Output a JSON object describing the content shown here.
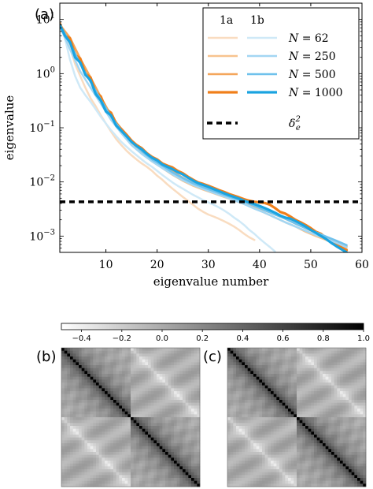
{
  "chart_data": [
    {
      "panel_label": "(a)",
      "type": "line",
      "xlabel": "eigenvalue number",
      "ylabel": "eigenvalue",
      "xlim": [
        1,
        60
      ],
      "ylim": [
        0.0005,
        20
      ],
      "yscale": "log",
      "grid": false,
      "legend_position": "top-right",
      "legend": {
        "column_headers": [
          "1a",
          "1b"
        ],
        "row_labels": [
          "N = 62",
          "N = 250",
          "N = 500",
          "N = 1000"
        ],
        "threshold_label": "δ_e²"
      },
      "x_ticks": [
        10,
        20,
        30,
        40,
        50,
        60
      ],
      "y_ticks": [
        {
          "value": 10,
          "base": "10",
          "exp": "1"
        },
        {
          "value": 1,
          "base": "10",
          "exp": "0"
        },
        {
          "value": 0.1,
          "base": "10",
          "exp": "−1"
        },
        {
          "value": 0.01,
          "base": "10",
          "exp": "−2"
        },
        {
          "value": 0.001,
          "base": "10",
          "exp": "−3"
        }
      ],
      "threshold": 0.0043,
      "series": [
        {
          "name": "1a, N = 62",
          "group": "1a",
          "N": 62,
          "color": "#f9dcc0",
          "width": 2.5,
          "x": [
            1,
            2,
            3,
            4,
            5,
            6,
            7,
            8,
            9,
            10,
            11,
            12,
            13,
            14,
            15,
            16,
            17,
            18,
            19,
            20,
            21,
            22,
            23,
            24,
            25,
            26,
            27,
            28,
            29,
            30,
            31,
            32,
            33,
            34,
            35,
            36,
            37,
            38,
            39
          ],
          "y": [
            8,
            5,
            3,
            1.5,
            0.9,
            0.55,
            0.35,
            0.25,
            0.17,
            0.12,
            0.085,
            0.062,
            0.048,
            0.038,
            0.031,
            0.026,
            0.022,
            0.019,
            0.016,
            0.013,
            0.011,
            0.009,
            0.0075,
            0.0063,
            0.0053,
            0.0045,
            0.0038,
            0.0032,
            0.0028,
            0.0025,
            0.0023,
            0.0021,
            0.0019,
            0.0017,
            0.0015,
            0.0013,
            0.0011,
            0.00095,
            0.00085
          ]
        },
        {
          "name": "1a, N = 250",
          "group": "1a",
          "N": 250,
          "color": "#f7c38f",
          "width": 2.5,
          "x": [
            1,
            3,
            5,
            7,
            9,
            11,
            13,
            15,
            17,
            19,
            21,
            23,
            25,
            27,
            29,
            31,
            33,
            35,
            37,
            39,
            41,
            43,
            45,
            47,
            49,
            51,
            53,
            55,
            57
          ],
          "y": [
            8,
            4.2,
            1.7,
            0.75,
            0.32,
            0.15,
            0.085,
            0.05,
            0.034,
            0.024,
            0.018,
            0.0135,
            0.0105,
            0.0085,
            0.0072,
            0.0062,
            0.0053,
            0.0046,
            0.0039,
            0.0033,
            0.0027,
            0.0022,
            0.0018,
            0.0015,
            0.0012,
            0.001,
            0.00085,
            0.0007,
            0.00058
          ]
        },
        {
          "name": "1a, N = 500",
          "group": "1a",
          "N": 500,
          "color": "#f4a65b",
          "width": 2.5,
          "x": [
            1,
            3,
            5,
            7,
            9,
            11,
            13,
            15,
            17,
            19,
            21,
            23,
            25,
            27,
            29,
            31,
            33,
            35,
            37,
            39,
            41,
            43,
            45,
            47,
            49,
            51,
            53,
            55,
            57
          ],
          "y": [
            8,
            4.6,
            1.9,
            0.85,
            0.37,
            0.17,
            0.095,
            0.058,
            0.038,
            0.027,
            0.021,
            0.0155,
            0.012,
            0.0095,
            0.008,
            0.0068,
            0.0058,
            0.005,
            0.0043,
            0.0036,
            0.003,
            0.0025,
            0.0021,
            0.0017,
            0.0014,
            0.00115,
            0.00095,
            0.0008,
            0.00065
          ]
        },
        {
          "name": "1a, N = 1000",
          "group": "1a",
          "N": 1000,
          "color": "#f07f1a",
          "width": 3.2,
          "x": [
            1,
            2,
            3,
            4,
            5,
            6,
            7,
            8,
            9,
            10,
            11,
            12,
            13,
            14,
            15,
            16,
            17,
            18,
            19,
            20,
            21,
            22,
            23,
            24,
            25,
            26,
            27,
            28,
            29,
            30,
            31,
            32,
            33,
            34,
            35,
            36,
            37,
            38,
            39,
            40,
            41,
            42,
            43,
            44,
            45,
            46,
            47,
            48,
            49,
            50,
            51,
            52,
            53,
            54,
            55,
            56,
            57
          ],
          "y": [
            8.5,
            5,
            4.5,
            2.2,
            1.9,
            1.0,
            0.85,
            0.45,
            0.38,
            0.22,
            0.19,
            0.12,
            0.095,
            0.075,
            0.058,
            0.048,
            0.042,
            0.034,
            0.029,
            0.026,
            0.022,
            0.02,
            0.0185,
            0.016,
            0.0145,
            0.0125,
            0.011,
            0.0098,
            0.0092,
            0.0085,
            0.0078,
            0.0071,
            0.0066,
            0.006,
            0.0056,
            0.0052,
            0.0048,
            0.0045,
            0.0043,
            0.0042,
            0.0041,
            0.0038,
            0.0033,
            0.0028,
            0.0026,
            0.0023,
            0.002,
            0.0018,
            0.0016,
            0.0014,
            0.0012,
            0.0011,
            0.00092,
            0.0008,
            0.0007,
            0.00062,
            0.00055
          ]
        },
        {
          "name": "1b, N = 62",
          "group": "1b",
          "N": 62,
          "color": "#cfe9f7",
          "width": 2.5,
          "x": [
            1,
            2,
            3,
            4,
            5,
            6,
            7,
            8,
            9,
            10,
            11,
            12,
            13,
            14,
            15,
            16,
            17,
            18,
            19,
            20,
            21,
            22,
            23,
            24,
            25,
            26,
            27,
            28,
            29,
            30,
            31,
            32,
            33,
            34,
            35,
            36,
            37,
            38,
            39,
            40,
            41,
            42,
            43
          ],
          "y": [
            8,
            4.5,
            1.8,
            0.9,
            0.55,
            0.4,
            0.3,
            0.22,
            0.16,
            0.12,
            0.09,
            0.07,
            0.055,
            0.045,
            0.037,
            0.031,
            0.026,
            0.022,
            0.019,
            0.016,
            0.0135,
            0.0115,
            0.0098,
            0.0085,
            0.0075,
            0.0066,
            0.0058,
            0.0052,
            0.0046,
            0.0042,
            0.0038,
            0.0034,
            0.003,
            0.0026,
            0.0022,
            0.0019,
            0.0016,
            0.0013,
            0.0011,
            0.0009,
            0.00075,
            0.00063,
            0.00052
          ]
        },
        {
          "name": "1b, N = 250",
          "group": "1b",
          "N": 250,
          "color": "#a3d6f3",
          "width": 2.5,
          "x": [
            1,
            3,
            5,
            7,
            9,
            11,
            13,
            15,
            17,
            19,
            21,
            23,
            25,
            27,
            29,
            31,
            33,
            35,
            37,
            39,
            41,
            43,
            45,
            47,
            49,
            51,
            53,
            55,
            57
          ],
          "y": [
            7.5,
            2.8,
            1.1,
            0.55,
            0.28,
            0.14,
            0.08,
            0.048,
            0.033,
            0.024,
            0.018,
            0.0138,
            0.0108,
            0.0088,
            0.0074,
            0.0063,
            0.0054,
            0.0046,
            0.0039,
            0.0032,
            0.0027,
            0.0022,
            0.0018,
            0.0015,
            0.00125,
            0.00105,
            0.0009,
            0.00075,
            0.00062
          ]
        },
        {
          "name": "1b, N = 500",
          "group": "1b",
          "N": 500,
          "color": "#6fc1ec",
          "width": 2.5,
          "x": [
            1,
            3,
            5,
            7,
            9,
            11,
            13,
            15,
            17,
            19,
            21,
            23,
            25,
            27,
            29,
            31,
            33,
            35,
            37,
            39,
            41,
            43,
            45,
            47,
            49,
            51,
            53,
            55,
            57
          ],
          "y": [
            8,
            3.6,
            1.5,
            0.7,
            0.33,
            0.16,
            0.09,
            0.055,
            0.037,
            0.026,
            0.02,
            0.015,
            0.0118,
            0.0095,
            0.008,
            0.0068,
            0.0058,
            0.005,
            0.0043,
            0.0036,
            0.003,
            0.0025,
            0.0021,
            0.0017,
            0.0014,
            0.00118,
            0.00098,
            0.00082,
            0.00068
          ]
        },
        {
          "name": "1b, N = 1000",
          "group": "1b",
          "N": 1000,
          "color": "#1aa3e0",
          "width": 3.2,
          "x": [
            1,
            2,
            3,
            4,
            5,
            6,
            7,
            8,
            9,
            10,
            11,
            12,
            13,
            14,
            15,
            16,
            17,
            18,
            19,
            20,
            21,
            22,
            23,
            24,
            25,
            26,
            27,
            28,
            29,
            30,
            31,
            32,
            33,
            34,
            35,
            36,
            37,
            38,
            39,
            40,
            41,
            42,
            43,
            44,
            45,
            46,
            47,
            48,
            49,
            50,
            51,
            52,
            53,
            54,
            55,
            56,
            57
          ],
          "y": [
            8,
            5,
            3.8,
            2,
            1.6,
            0.95,
            0.75,
            0.42,
            0.32,
            0.2,
            0.17,
            0.11,
            0.088,
            0.07,
            0.055,
            0.046,
            0.04,
            0.033,
            0.028,
            0.025,
            0.021,
            0.019,
            0.0172,
            0.0152,
            0.0138,
            0.012,
            0.0106,
            0.0095,
            0.0088,
            0.0081,
            0.0074,
            0.0068,
            0.0062,
            0.0057,
            0.0053,
            0.0049,
            0.0045,
            0.0042,
            0.0039,
            0.0036,
            0.0033,
            0.003,
            0.0027,
            0.0024,
            0.0022,
            0.0021,
            0.0019,
            0.0017,
            0.0015,
            0.0013,
            0.00115,
            0.001,
            0.00088,
            0.00075,
            0.00065,
            0.00057,
            0.0005
          ]
        }
      ]
    },
    {
      "type": "heatmap",
      "colorbar": {
        "min": -0.5,
        "max": 1.0,
        "ticks": [
          {
            "value": -0.4,
            "label": "−0.4"
          },
          {
            "value": -0.2,
            "label": "−0.2"
          },
          {
            "value": 0.0,
            "label": "0.0"
          },
          {
            "value": 0.2,
            "label": "0.2"
          },
          {
            "value": 0.4,
            "label": "0.4"
          },
          {
            "value": 0.6,
            "label": "0.6"
          },
          {
            "value": 0.8,
            "label": "0.8"
          },
          {
            "value": 1.0,
            "label": "1.0"
          }
        ],
        "colors": [
          "#ffffff",
          "#000000"
        ]
      },
      "panels": [
        {
          "panel_label": "(b)",
          "size": 48
        },
        {
          "panel_label": "(c)",
          "size": 48
        }
      ]
    }
  ]
}
